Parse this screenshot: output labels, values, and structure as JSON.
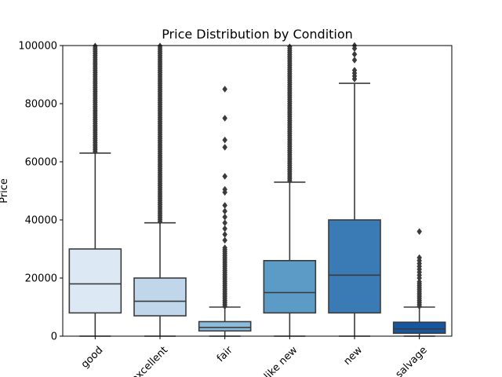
{
  "chart_data": {
    "type": "box",
    "title": "Price Distribution by Condition",
    "xlabel": "",
    "ylabel": "Price",
    "ylim": [
      0,
      100000
    ],
    "yticks": [
      0,
      20000,
      40000,
      60000,
      80000,
      100000
    ],
    "ytick_labels": [
      "0",
      "20000",
      "40000",
      "60000",
      "80000",
      "100000"
    ],
    "categories": [
      "good",
      "excellent",
      "fair",
      "like new",
      "new",
      "salvage"
    ],
    "xtick_rotation": 45,
    "boxes": [
      {
        "category": "good",
        "color": "#dde8f5",
        "whisker_low": 0,
        "q1": 8000,
        "median": 18000,
        "q3": 30000,
        "whisker_high": 63000,
        "outlier_band": [
          63500,
          100000
        ],
        "outliers": []
      },
      {
        "category": "excellent",
        "color": "#c0d6ea",
        "whisker_low": 0,
        "q1": 7000,
        "median": 12000,
        "q3": 20000,
        "whisker_high": 39000,
        "outlier_band": [
          39500,
          100000
        ],
        "outliers": []
      },
      {
        "category": "fair",
        "color": "#8cbcdc",
        "whisker_low": 0,
        "q1": 1800,
        "median": 3000,
        "q3": 5000,
        "whisker_high": 10000,
        "outlier_band": [
          10300,
          31000
        ],
        "outliers": [
          33000,
          35000,
          37000,
          39000,
          41000,
          43000,
          45000,
          49500,
          50500,
          55000,
          65000,
          67500,
          75000,
          85000
        ]
      },
      {
        "category": "like new",
        "color": "#5b9bc6",
        "whisker_low": 0,
        "q1": 8000,
        "median": 15000,
        "q3": 26000,
        "whisker_high": 53000,
        "outlier_band": [
          53500,
          100000
        ],
        "outliers": []
      },
      {
        "category": "new",
        "color": "#3a7ab5",
        "whisker_low": 0,
        "q1": 8000,
        "median": 21000,
        "q3": 40000,
        "whisker_high": 87000,
        "outlier_band": [],
        "outliers": [
          88500,
          89500,
          90500,
          91500,
          95000,
          97000,
          99000,
          100000
        ]
      },
      {
        "category": "salvage",
        "color": "#1656a0",
        "whisker_low": 0,
        "q1": 1000,
        "median": 2500,
        "q3": 4800,
        "whisker_high": 10000,
        "outlier_band": [
          10300,
          19000
        ],
        "outliers": [
          20000,
          21000,
          22000,
          23000,
          24000,
          25000,
          26000,
          27000,
          36000
        ]
      }
    ]
  }
}
